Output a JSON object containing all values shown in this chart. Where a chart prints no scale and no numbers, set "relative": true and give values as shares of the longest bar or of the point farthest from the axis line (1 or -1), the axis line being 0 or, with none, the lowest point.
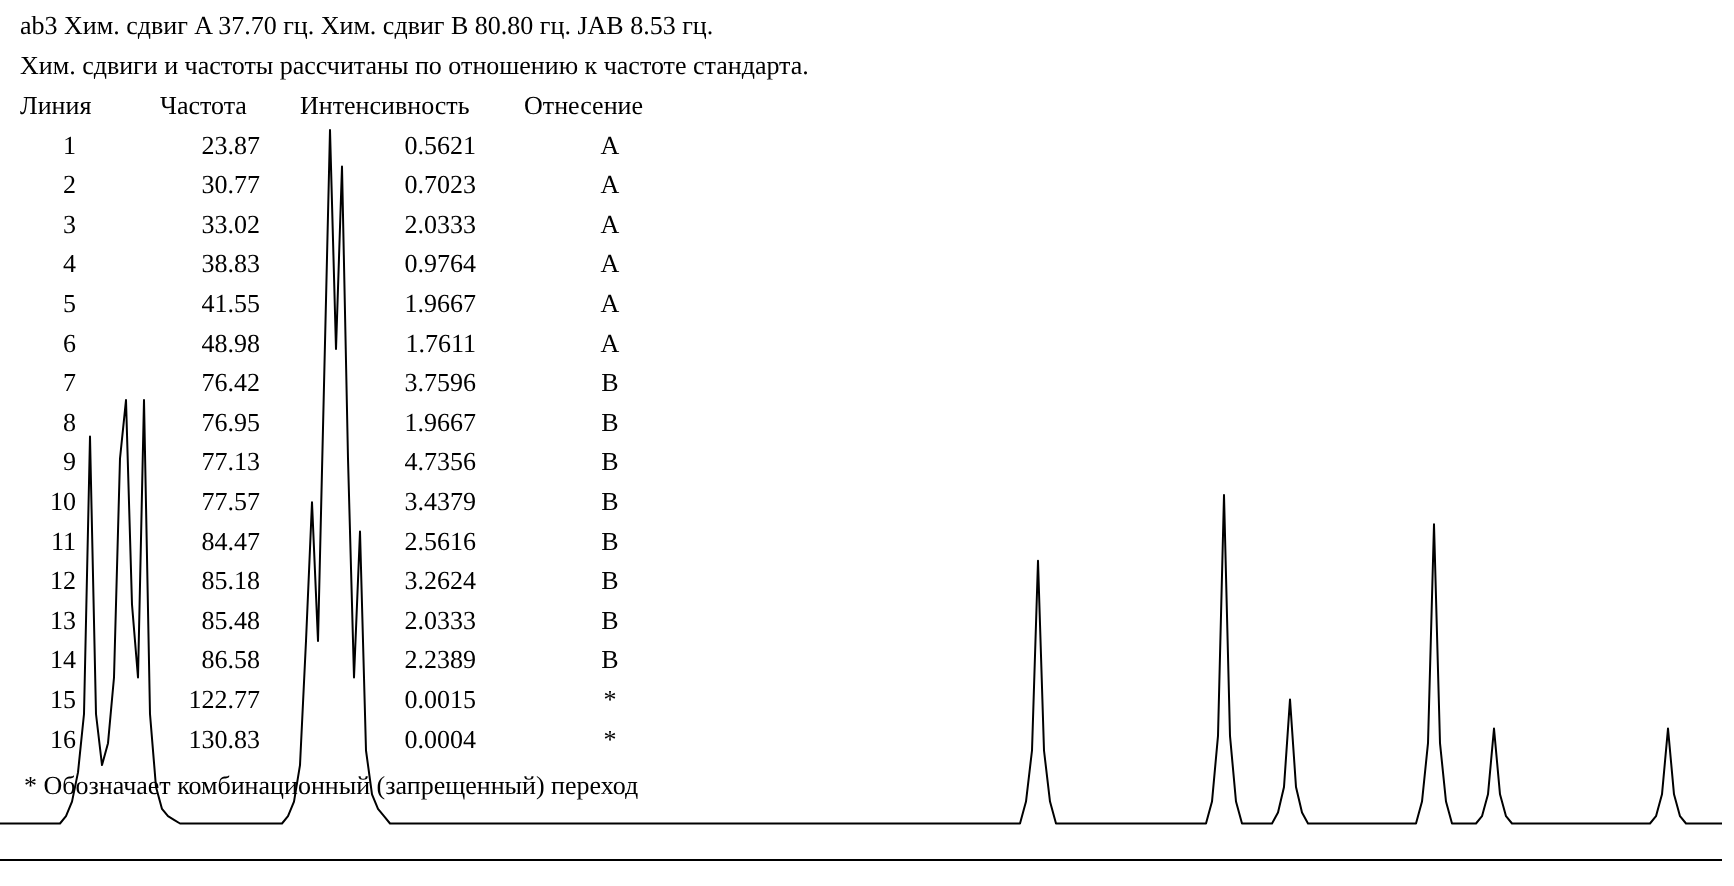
{
  "chart_data": {
    "type": "line",
    "relative": true,
    "title": "ab3  Хим. сдвиг A   37.70 гц. Хим. сдвиг B   80.80 гц. JAB    8.53 гц.",
    "subtitle": "Хим. сдвиги и частоты рассчитаны по отношению к частоте стандарта.",
    "annotations": [
      "Линия",
      "Частота",
      "Интенсивность",
      "Отнесение",
      "1",
      "23.87",
      "0.5621",
      "A",
      "2",
      "30.77",
      "0.7023",
      "A",
      "3",
      "33.02",
      "2.0333",
      "A",
      "4",
      "38.83",
      "0.9764",
      "A",
      "5",
      "41.55",
      "1.9667",
      "A",
      "6",
      "48.98",
      "1.7611",
      "A",
      "7",
      "76.42",
      "3.7596",
      "B",
      "8",
      "76.95",
      "1.9667",
      "B",
      "9",
      "77.13",
      "4.7356",
      "B",
      "10",
      "77.57",
      "3.4379",
      "B",
      "11",
      "84.47",
      "2.5616",
      "B",
      "12",
      "85.18",
      "3.2624",
      "B",
      "13",
      "85.48",
      "2.0333",
      "B",
      "14",
      "86.58",
      "2.2389",
      "B",
      "15",
      "122.77",
      "0.0015",
      "*",
      "16",
      "130.83",
      "0.0004",
      "*",
      "* Обозначает комбинационный (запрещенный) переход"
    ],
    "categories": [
      null,
      null,
      null,
      null,
      null,
      null,
      null,
      null,
      null,
      null,
      null,
      null,
      null,
      null,
      null,
      null,
      null,
      null,
      null,
      null,
      null,
      null,
      null,
      null,
      null,
      null,
      null,
      null,
      null,
      null,
      null,
      null,
      null,
      null,
      null,
      null,
      null,
      null,
      null,
      null,
      null,
      null,
      null,
      null,
      null,
      null,
      null,
      null,
      null,
      null,
      null,
      null,
      null,
      null,
      null,
      null,
      null,
      null,
      null,
      null,
      null,
      null,
      null,
      null,
      null,
      null,
      null,
      null,
      null,
      null,
      null,
      null,
      null,
      null,
      null,
      null,
      null,
      null,
      null,
      null,
      null,
      null,
      null,
      null,
      null,
      null,
      null,
      null,
      null,
      null,
      null,
      null,
      null,
      null,
      null,
      null,
      null,
      null,
      null,
      null,
      null,
      null,
      null,
      null,
      null,
      null,
      null,
      null,
      null,
      null,
      null,
      null,
      null,
      null,
      null,
      null,
      null,
      null,
      null,
      null,
      null,
      null,
      null,
      null,
      null,
      null,
      null,
      null,
      null,
      null,
      null,
      null,
      null,
      null,
      null,
      null,
      null,
      null,
      null,
      null,
      null,
      null,
      null,
      null,
      null,
      null,
      null,
      null,
      null,
      null,
      null,
      null,
      null,
      null,
      null,
      null,
      null,
      null,
      null,
      null,
      null,
      null,
      null,
      null,
      null,
      null,
      null,
      null,
      null,
      null,
      null,
      null,
      null,
      null,
      null,
      null,
      null,
      null,
      null,
      null,
      null,
      null,
      null,
      null,
      null,
      null,
      null,
      null,
      null,
      null,
      null,
      null,
      null,
      null,
      null,
      null,
      null,
      null,
      null,
      null,
      null,
      null,
      null,
      null,
      null,
      null,
      null,
      null,
      null,
      null,
      null,
      null,
      null,
      null,
      null,
      null,
      null,
      null,
      null,
      null,
      null,
      null,
      null,
      null,
      null,
      null,
      null,
      null,
      null,
      null,
      null,
      null,
      null,
      null,
      null,
      null,
      null,
      null,
      null,
      null,
      null,
      null,
      null,
      null,
      null,
      null,
      null,
      null,
      null,
      null,
      null,
      null,
      null,
      null,
      null,
      null,
      null,
      null,
      null,
      null,
      null,
      null,
      null,
      null,
      null,
      null,
      null,
      null,
      null,
      null,
      null,
      null,
      null,
      null,
      null,
      null,
      null,
      null,
      null,
      null,
      null,
      null,
      null,
      null,
      null,
      null,
      null,
      null
    ],
    "series": [
      {
        "color": "#000000",
        "values": [
          0.05,
          0.05,
          0.05,
          0.05,
          0.05,
          0.05,
          0.05,
          0.05,
          0.05,
          0.05,
          0.05,
          0.06,
          0.08,
          0.12,
          0.2,
          0.58,
          0.2,
          0.13,
          0.16,
          0.25,
          0.55,
          0.63,
          0.35,
          0.25,
          0.63,
          0.2,
          0.1,
          0.07,
          0.06,
          0.055,
          0.05,
          0.05,
          0.05,
          0.05,
          0.05,
          0.05,
          0.05,
          0.05,
          0.05,
          0.05,
          0.05,
          0.05,
          0.05,
          0.05,
          0.05,
          0.05,
          0.05,
          0.05,
          0.06,
          0.08,
          0.13,
          0.3,
          0.49,
          0.3,
          0.65,
          1,
          0.7,
          0.95,
          0.55,
          0.25,
          0.45,
          0.15,
          0.09,
          0.07,
          0.06,
          0.05,
          0.05,
          0.05,
          0.05,
          0.05,
          0.05,
          0.05,
          0.05,
          0.05,
          0.05,
          0.05,
          0.05,
          0.05,
          0.05,
          0.05,
          0.05,
          0.05,
          0.05,
          0.05,
          0.05,
          0.05,
          0.05,
          0.05,
          0.05,
          0.05,
          0.05,
          0.05,
          0.05,
          0.05,
          0.05,
          0.05,
          0.05,
          0.05,
          0.05,
          0.05,
          0.05,
          0.05,
          0.05,
          0.05,
          0.05,
          0.05,
          0.05,
          0.05,
          0.05,
          0.05,
          0.05,
          0.05,
          0.05,
          0.05,
          0.05,
          0.05,
          0.05,
          0.05,
          0.05,
          0.05,
          0.05,
          0.05,
          0.05,
          0.05,
          0.05,
          0.05,
          0.05,
          0.05,
          0.05,
          0.05,
          0.05,
          0.05,
          0.05,
          0.05,
          0.05,
          0.05,
          0.05,
          0.05,
          0.05,
          0.05,
          0.05,
          0.05,
          0.05,
          0.05,
          0.05,
          0.05,
          0.05,
          0.05,
          0.05,
          0.05,
          0.05,
          0.05,
          0.05,
          0.05,
          0.05,
          0.05,
          0.05,
          0.05,
          0.05,
          0.05,
          0.05,
          0.05,
          0.05,
          0.05,
          0.05,
          0.05,
          0.05,
          0.05,
          0.05,
          0.05,
          0.05,
          0.08,
          0.15,
          0.41,
          0.15,
          0.08,
          0.05,
          0.05,
          0.05,
          0.05,
          0.05,
          0.05,
          0.05,
          0.05,
          0.05,
          0.05,
          0.05,
          0.05,
          0.05,
          0.05,
          0.05,
          0.05,
          0.05,
          0.05,
          0.05,
          0.05,
          0.05,
          0.05,
          0.05,
          0.05,
          0.05,
          0.05,
          0.08,
          0.17,
          0.5,
          0.17,
          0.08,
          0.05,
          0.05,
          0.05,
          0.05,
          0.05,
          0.05,
          0.065,
          0.1,
          0.22,
          0.1,
          0.065,
          0.05,
          0.05,
          0.05,
          0.05,
          0.05,
          0.05,
          0.05,
          0.05,
          0.05,
          0.05,
          0.05,
          0.05,
          0.05,
          0.05,
          0.05,
          0.05,
          0.05,
          0.05,
          0.05,
          0.08,
          0.16,
          0.46,
          0.16,
          0.08,
          0.05,
          0.05,
          0.05,
          0.05,
          0.05,
          0.06,
          0.09,
          0.18,
          0.09,
          0.06,
          0.05,
          0.05,
          0.05,
          0.05,
          0.05,
          0.05,
          0.05,
          0.05,
          0.05,
          0.05,
          0.05,
          0.05,
          0.05,
          0.05,
          0.05,
          0.05,
          0.05,
          0.05,
          0.05,
          0.05,
          0.05,
          0.05,
          0.05,
          0.05,
          0.06,
          0.09,
          0.18,
          0.09,
          0.06,
          0.05,
          0.05,
          0.05,
          0.05,
          0.05,
          0.05,
          0.05
        ]
      }
    ]
  }
}
